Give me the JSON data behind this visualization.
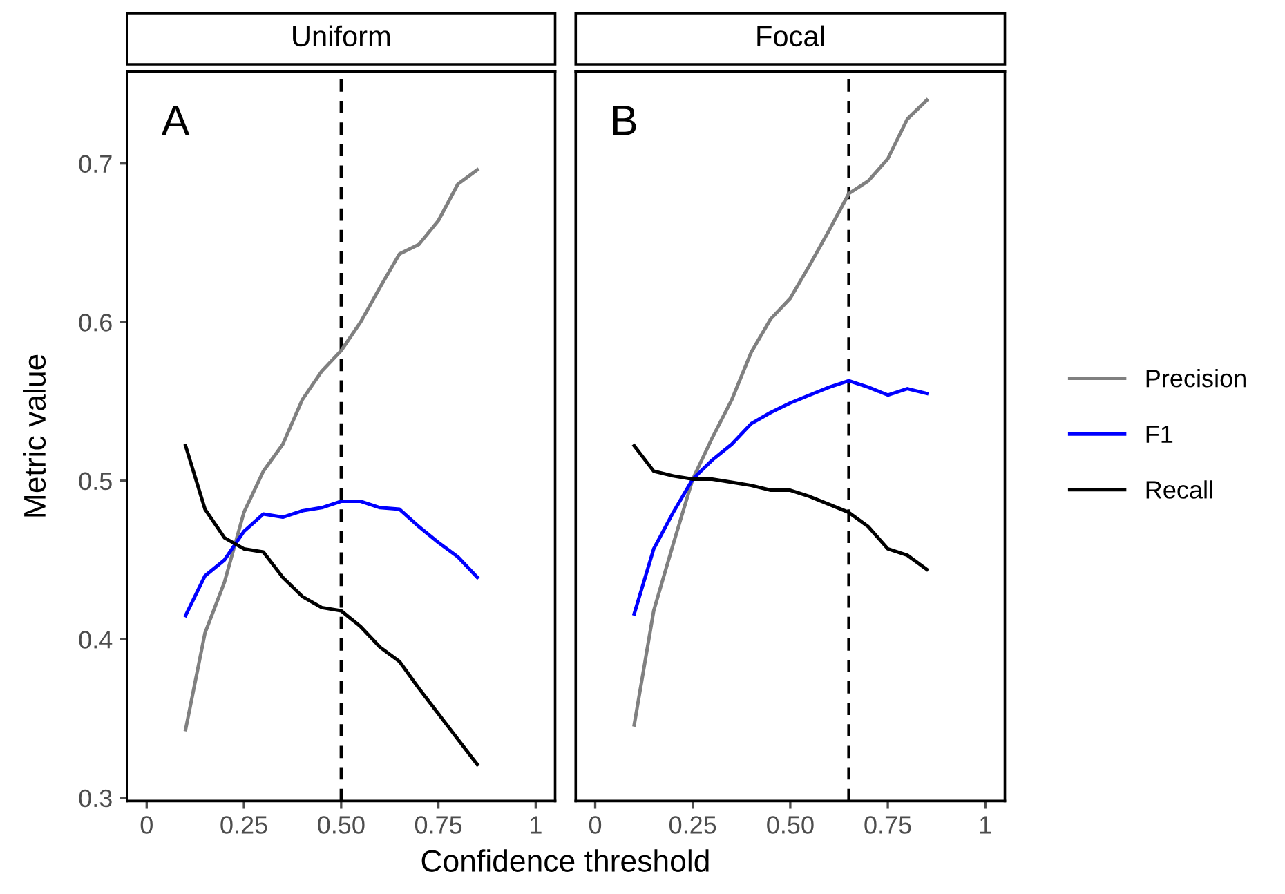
{
  "chart_data": [
    {
      "type": "line",
      "title": "Uniform",
      "xlabel": "Confidence threshold",
      "ylabel": "Metric value",
      "annotations": [
        "A"
      ],
      "x": [
        0.1,
        0.15,
        0.2,
        0.25,
        0.3,
        0.35,
        0.4,
        0.45,
        0.5,
        0.55,
        0.6,
        0.65,
        0.7,
        0.75,
        0.8,
        0.85
      ],
      "series": [
        {
          "name": "Precision",
          "color": "#808080",
          "values": [
            0.343,
            0.404,
            0.436,
            0.48,
            0.506,
            0.523,
            0.551,
            0.569,
            0.582,
            0.6,
            0.622,
            0.643,
            0.649,
            0.664,
            0.687,
            0.696
          ]
        },
        {
          "name": "F1",
          "color": "#0000ff",
          "values": [
            0.415,
            0.44,
            0.45,
            0.468,
            0.479,
            0.477,
            0.481,
            0.483,
            0.487,
            0.487,
            0.483,
            0.482,
            0.471,
            0.461,
            0.452,
            0.439
          ]
        },
        {
          "name": "Recall",
          "color": "#000000",
          "values": [
            0.522,
            0.482,
            0.464,
            0.457,
            0.455,
            0.439,
            0.427,
            0.42,
            0.418,
            0.408,
            0.395,
            0.386,
            0.369,
            0.353,
            0.337,
            0.321
          ]
        }
      ],
      "xlim": [
        -0.05,
        1.05
      ],
      "ylim": [
        0.298,
        0.758
      ],
      "xticks": [
        0,
        0.25,
        {
          "value": 0.5,
          "label": "0.50"
        },
        0.75,
        1
      ],
      "yticks": [
        0.3,
        0.4,
        0.5,
        0.6,
        0.7
      ],
      "ref_lines": [
        {
          "axis": "x",
          "value": 0.5,
          "color": "#000000",
          "line_style": "dashed"
        }
      ],
      "grid": false,
      "legend": "right"
    },
    {
      "type": "line",
      "title": "Focal",
      "annotations": [
        "B"
      ],
      "x": [
        0.1,
        0.15,
        0.2,
        0.25,
        0.3,
        0.35,
        0.4,
        0.45,
        0.5,
        0.55,
        0.6,
        0.65,
        0.7,
        0.75,
        0.8,
        0.85
      ],
      "series": [
        {
          "color": "#808080",
          "values": [
            0.346,
            0.418,
            0.46,
            0.501,
            0.527,
            0.551,
            0.581,
            0.602,
            0.615,
            0.636,
            0.658,
            0.681,
            0.689,
            0.703,
            0.728,
            0.74
          ]
        },
        {
          "color": "#0000ff",
          "values": [
            0.416,
            0.457,
            0.48,
            0.501,
            0.513,
            0.523,
            0.536,
            0.543,
            0.549,
            0.554,
            0.559,
            0.563,
            0.559,
            0.554,
            0.558,
            0.555
          ]
        },
        {
          "color": "#000000",
          "values": [
            0.522,
            0.506,
            0.503,
            0.501,
            0.501,
            0.499,
            0.497,
            0.494,
            0.494,
            0.49,
            0.485,
            0.48,
            0.471,
            0.457,
            0.453,
            0.444
          ]
        }
      ],
      "xlim": [
        -0.05,
        1.05
      ],
      "ylim": [
        0.298,
        0.758
      ],
      "xticks": [
        0,
        0.25,
        {
          "value": 0.5,
          "label": "0.50"
        },
        0.75,
        1
      ],
      "yticks": [
        0.3,
        0.4,
        0.5,
        0.6,
        0.7
      ],
      "tick_labels": "x",
      "ref_lines": [
        {
          "axis": "x",
          "value": 0.65,
          "color": "#000000",
          "line_style": "dashed"
        }
      ],
      "grid": false
    }
  ]
}
